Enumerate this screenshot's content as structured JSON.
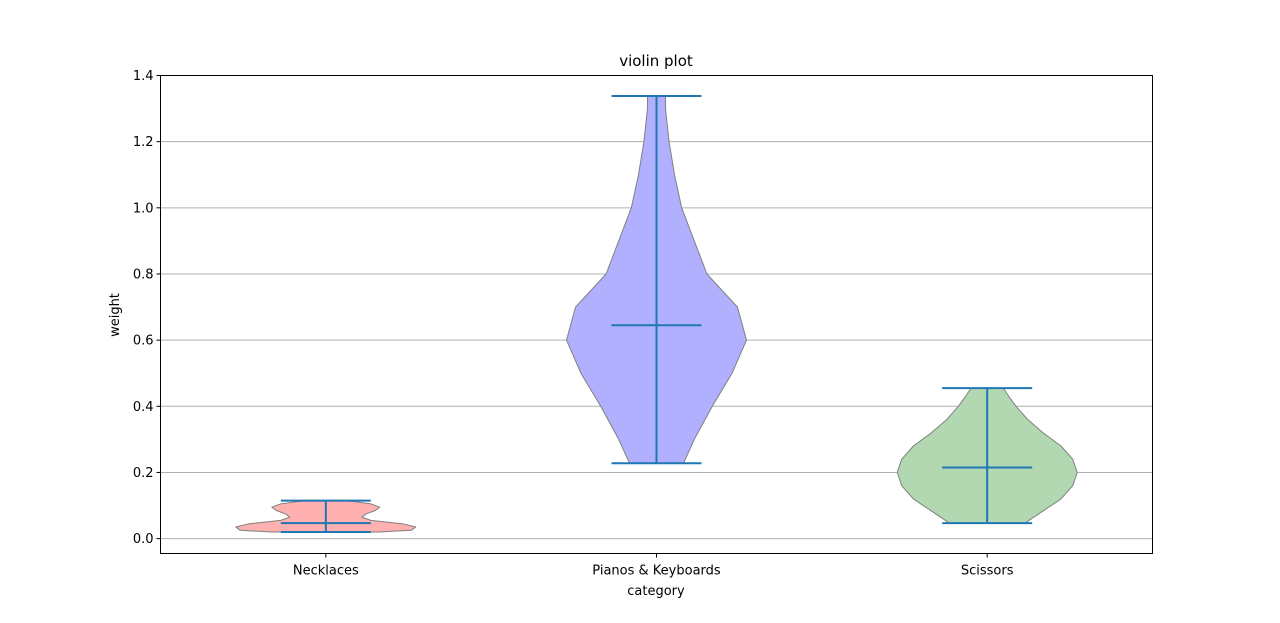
{
  "chart_data": {
    "type": "violin",
    "title": "violin plot",
    "xlabel": "category",
    "ylabel": "weight",
    "categories": [
      "Necklaces",
      "Pianos & Keyboards",
      "Scissors"
    ],
    "ylim": [
      -0.045,
      1.4
    ],
    "yticks": [
      0.0,
      0.2,
      0.4,
      0.6,
      0.8,
      1.0,
      1.2,
      1.4
    ],
    "ytick_labels": [
      "0.0",
      "0.2",
      "0.4",
      "0.6",
      "0.8",
      "1.0",
      "1.2",
      "1.4"
    ],
    "grid": {
      "y": true,
      "x": false
    },
    "violins": [
      {
        "category": "Necklaces",
        "fill": "#ffb0b0",
        "min": 0.02,
        "median": 0.047,
        "max": 0.115,
        "profile": [
          [
            0.02,
            0.6
          ],
          [
            0.025,
            0.95
          ],
          [
            0.035,
            1.0
          ],
          [
            0.045,
            0.85
          ],
          [
            0.055,
            0.5
          ],
          [
            0.065,
            0.4
          ],
          [
            0.075,
            0.45
          ],
          [
            0.085,
            0.55
          ],
          [
            0.095,
            0.6
          ],
          [
            0.105,
            0.5
          ],
          [
            0.112,
            0.32
          ],
          [
            0.115,
            0.2
          ]
        ]
      },
      {
        "category": "Pianos & Keyboards",
        "fill": "#b0b0ff",
        "min": 0.228,
        "median": 0.645,
        "max": 1.338,
        "profile": [
          [
            0.228,
            0.3
          ],
          [
            0.3,
            0.42
          ],
          [
            0.4,
            0.62
          ],
          [
            0.5,
            0.84
          ],
          [
            0.6,
            1.0
          ],
          [
            0.7,
            0.9
          ],
          [
            0.8,
            0.56
          ],
          [
            0.9,
            0.42
          ],
          [
            1.0,
            0.28
          ],
          [
            1.1,
            0.2
          ],
          [
            1.2,
            0.14
          ],
          [
            1.3,
            0.1
          ],
          [
            1.338,
            0.1
          ]
        ]
      },
      {
        "category": "Scissors",
        "fill": "#b2d8b2",
        "min": 0.047,
        "median": 0.215,
        "max": 0.455,
        "profile": [
          [
            0.047,
            0.42
          ],
          [
            0.08,
            0.6
          ],
          [
            0.12,
            0.82
          ],
          [
            0.16,
            0.95
          ],
          [
            0.2,
            1.0
          ],
          [
            0.24,
            0.95
          ],
          [
            0.28,
            0.82
          ],
          [
            0.32,
            0.62
          ],
          [
            0.36,
            0.45
          ],
          [
            0.4,
            0.32
          ],
          [
            0.43,
            0.24
          ],
          [
            0.455,
            0.18
          ]
        ]
      }
    ],
    "colors": {
      "whisker": "#1f77b4",
      "violin_edge": "#808080",
      "grid": "#b0b0b0",
      "axes": "#000000"
    }
  }
}
